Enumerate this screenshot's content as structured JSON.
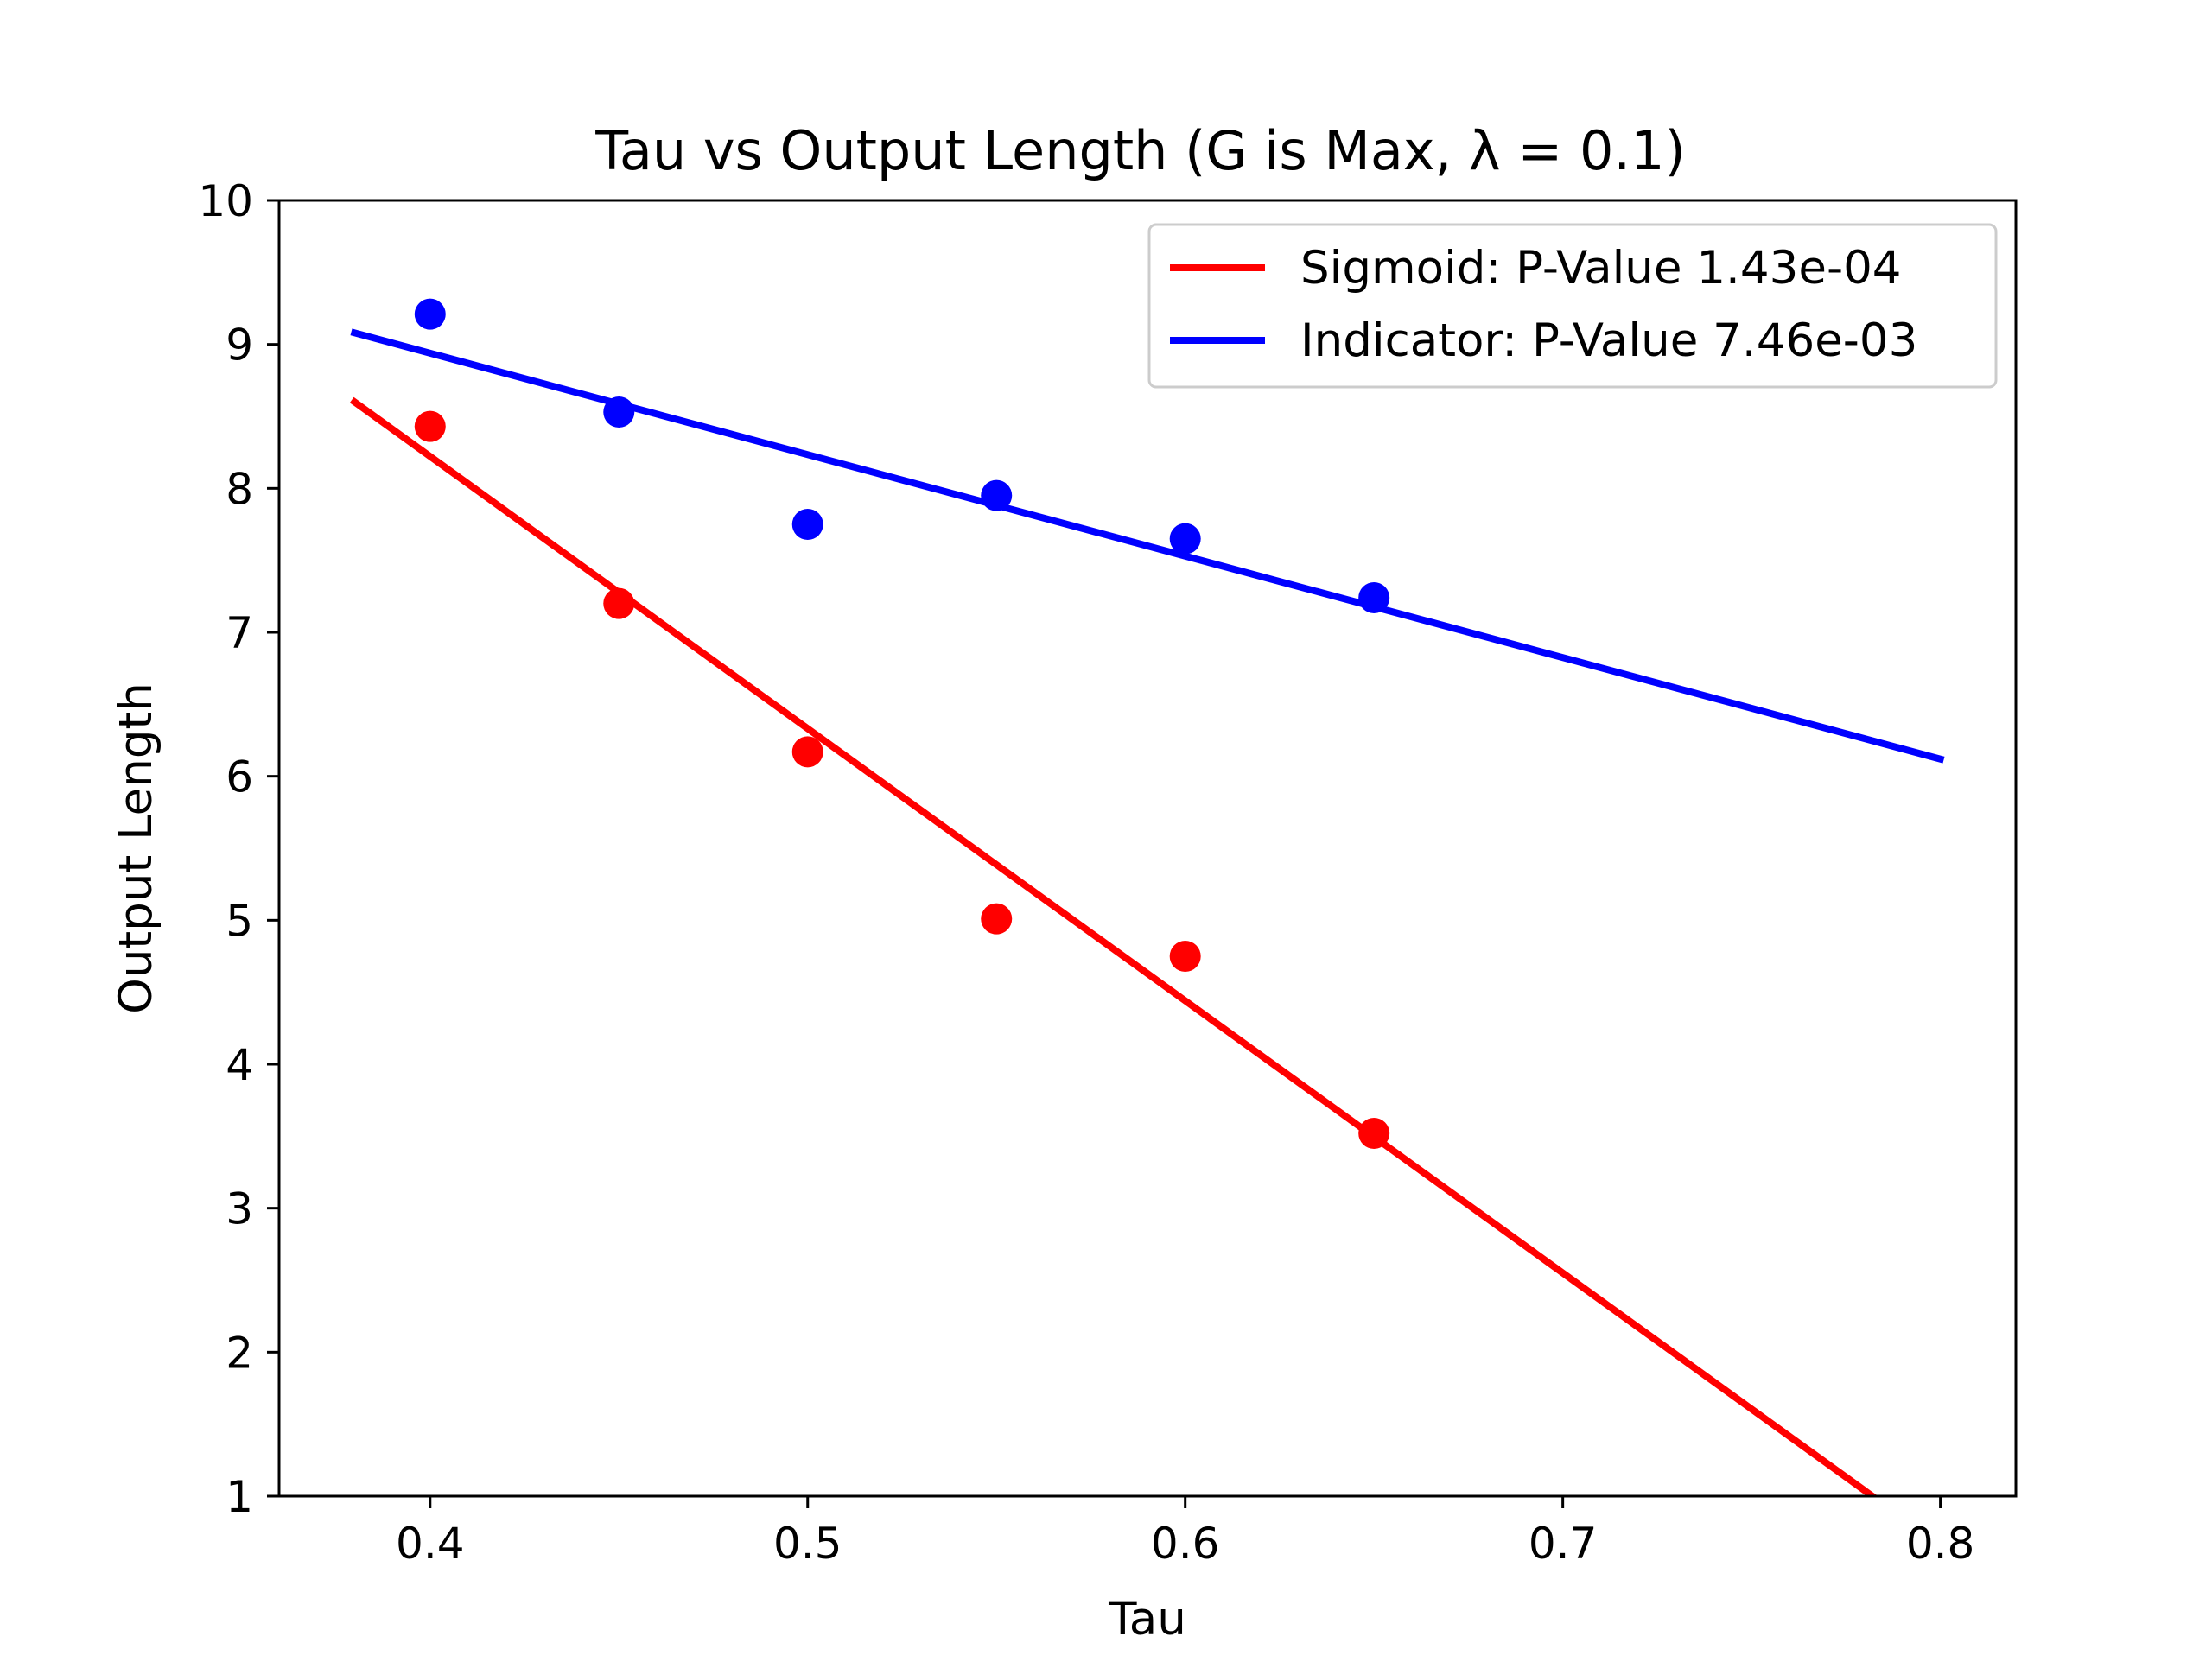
{
  "chart_data": {
    "type": "scatter",
    "title": "Tau vs Output Length (G is Max, λ = 0.1)",
    "xlabel": "Tau",
    "ylabel": "Output Length",
    "xlim": [
      0.36,
      0.82
    ],
    "ylim": [
      1,
      10
    ],
    "xticks": [
      0.4,
      0.5,
      0.6,
      0.7,
      0.8
    ],
    "xtick_labels": [
      "0.4",
      "0.5",
      "0.6",
      "0.7",
      "0.8"
    ],
    "yticks": [
      1,
      2,
      3,
      4,
      5,
      6,
      7,
      8,
      9,
      10
    ],
    "ytick_labels": [
      "1",
      "2",
      "3",
      "4",
      "5",
      "6",
      "7",
      "8",
      "9",
      "10"
    ],
    "grid": false,
    "legend_position": "top-right",
    "series": [
      {
        "name": "Sigmoid: P-Value 1.43e-04",
        "color": "#ff0000",
        "points": {
          "x": [
            0.4,
            0.45,
            0.5,
            0.55,
            0.6,
            0.65
          ],
          "y": [
            8.43,
            7.2,
            6.17,
            5.01,
            4.75,
            3.52
          ]
        },
        "fit_line": {
          "x": [
            0.38,
            0.782
          ],
          "y": [
            8.6,
            1.0
          ]
        }
      },
      {
        "name": "Indicator: P-Value 7.46e-03",
        "color": "#0000ff",
        "points": {
          "x": [
            0.4,
            0.45,
            0.5,
            0.55,
            0.6,
            0.65
          ],
          "y": [
            9.21,
            8.53,
            7.75,
            7.95,
            7.65,
            7.24
          ]
        },
        "fit_line": {
          "x": [
            0.38,
            0.8
          ],
          "y": [
            9.08,
            6.12
          ]
        }
      }
    ]
  }
}
